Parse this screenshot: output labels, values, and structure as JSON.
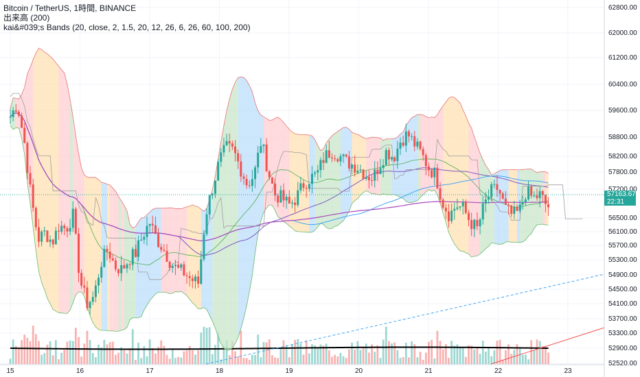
{
  "legend": {
    "title": "Bitcoin / TetherUS, 1時間, BINANCE",
    "volume": "出来高 (200)",
    "indicator": "kai&#039;s Bands (20, close, 2, 1.5, 20, 12, 26, 6, 26, 60, 100, 200)"
  },
  "price_badge": {
    "price": "57163.67",
    "countdown": "22:31"
  },
  "colors": {
    "up": "#26a69a",
    "down": "#ef5350",
    "band_green": "#c8e6c9",
    "band_blue": "#bbdefb",
    "band_orange": "#ffe0b2",
    "band_pink": "#ffcdd2",
    "band_purple": "#e1bee7"
  },
  "chart_data": {
    "type": "candlestick",
    "y_ticks": [
      "62800.00",
      "62000.00",
      "61200.00",
      "60400.00",
      "59600.00",
      "58800.00",
      "58200.00",
      "57800.00",
      "57200.00",
      "56500.00",
      "56100.00",
      "55700.00",
      "55300.00",
      "54900.00",
      "54500.00",
      "54100.00",
      "53700.00",
      "53300.00",
      "52900.00",
      "52520.00"
    ],
    "x_ticks": [
      "15",
      "16",
      "17",
      "18",
      "19",
      "20",
      "21",
      "22",
      "23"
    ],
    "ylim": [
      52520,
      63000
    ],
    "last_price": 57163.67,
    "price_path": [
      [
        15.0,
        59800
      ],
      [
        15.1,
        60200
      ],
      [
        15.2,
        59100
      ],
      [
        15.3,
        57400
      ],
      [
        15.4,
        56200
      ],
      [
        15.5,
        56400
      ],
      [
        15.6,
        56100
      ],
      [
        15.7,
        56600
      ],
      [
        15.8,
        56500
      ],
      [
        15.9,
        56900
      ],
      [
        16.0,
        55000
      ],
      [
        16.1,
        54300
      ],
      [
        16.2,
        54500
      ],
      [
        16.3,
        55500
      ],
      [
        16.4,
        55900
      ],
      [
        16.5,
        55400
      ],
      [
        16.6,
        55300
      ],
      [
        16.7,
        55600
      ],
      [
        16.8,
        55800
      ],
      [
        16.9,
        56300
      ],
      [
        17.0,
        56700
      ],
      [
        17.1,
        56200
      ],
      [
        17.2,
        55900
      ],
      [
        17.3,
        55500
      ],
      [
        17.4,
        55300
      ],
      [
        17.5,
        55200
      ],
      [
        17.6,
        55000
      ],
      [
        17.7,
        54900
      ],
      [
        17.8,
        56900
      ],
      [
        17.9,
        57700
      ],
      [
        18.0,
        58500
      ],
      [
        18.1,
        58900
      ],
      [
        18.2,
        58800
      ],
      [
        18.3,
        58300
      ],
      [
        18.4,
        57800
      ],
      [
        18.5,
        58100
      ],
      [
        18.6,
        59100
      ],
      [
        18.7,
        58200
      ],
      [
        18.8,
        57500
      ],
      [
        18.9,
        57400
      ],
      [
        19.0,
        57200
      ],
      [
        19.1,
        57400
      ],
      [
        19.2,
        57800
      ],
      [
        19.3,
        58000
      ],
      [
        19.4,
        58100
      ],
      [
        19.5,
        58600
      ],
      [
        19.6,
        58800
      ],
      [
        19.7,
        58700
      ],
      [
        19.8,
        58500
      ],
      [
        19.9,
        58400
      ],
      [
        20.0,
        58300
      ],
      [
        20.1,
        58100
      ],
      [
        20.2,
        58000
      ],
      [
        20.3,
        58400
      ],
      [
        20.4,
        58800
      ],
      [
        20.5,
        58600
      ],
      [
        20.6,
        59100
      ],
      [
        20.7,
        59300
      ],
      [
        20.8,
        59000
      ],
      [
        20.9,
        58700
      ],
      [
        21.0,
        58300
      ],
      [
        21.1,
        58100
      ],
      [
        21.2,
        57300
      ],
      [
        21.3,
        56900
      ],
      [
        21.4,
        57200
      ],
      [
        21.5,
        57100
      ],
      [
        21.6,
        56700
      ],
      [
        21.7,
        56500
      ],
      [
        21.8,
        57200
      ],
      [
        21.9,
        57600
      ],
      [
        22.0,
        57700
      ],
      [
        22.1,
        57100
      ],
      [
        22.2,
        56900
      ],
      [
        22.3,
        57000
      ],
      [
        22.4,
        57600
      ],
      [
        22.5,
        57400
      ],
      [
        22.6,
        57500
      ],
      [
        22.7,
        57160
      ]
    ]
  }
}
